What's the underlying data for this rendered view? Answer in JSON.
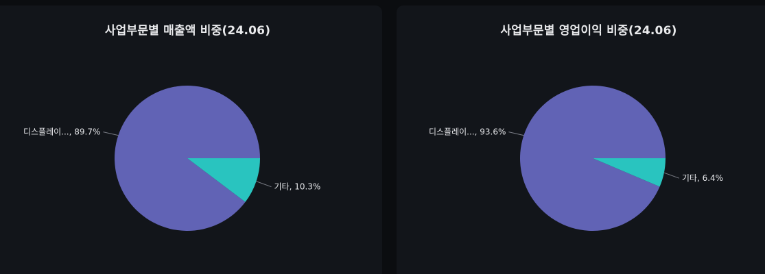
{
  "colors": {
    "page_background": "#0b0d10",
    "panel_background": "#12151a",
    "slice_primary": "#6163b5",
    "slice_secondary": "#29c4bf",
    "leader_line": "#7a7d86"
  },
  "chart_data": [
    {
      "type": "pie",
      "title": "사업부문별 매출액 비중(24.06)",
      "slices": [
        {
          "label": "디스플레이...",
          "value": 89.7,
          "display": "디스플레이..., 89.7%"
        },
        {
          "label": "기타",
          "value": 10.3,
          "display": "기타, 10.3%"
        }
      ]
    },
    {
      "type": "pie",
      "title": "사업부문별 영업이익 비중(24.06)",
      "slices": [
        {
          "label": "디스플레이...",
          "value": 93.6,
          "display": "디스플레이..., 93.6%"
        },
        {
          "label": "기타",
          "value": 6.4,
          "display": "기타, 6.4%"
        }
      ]
    }
  ]
}
